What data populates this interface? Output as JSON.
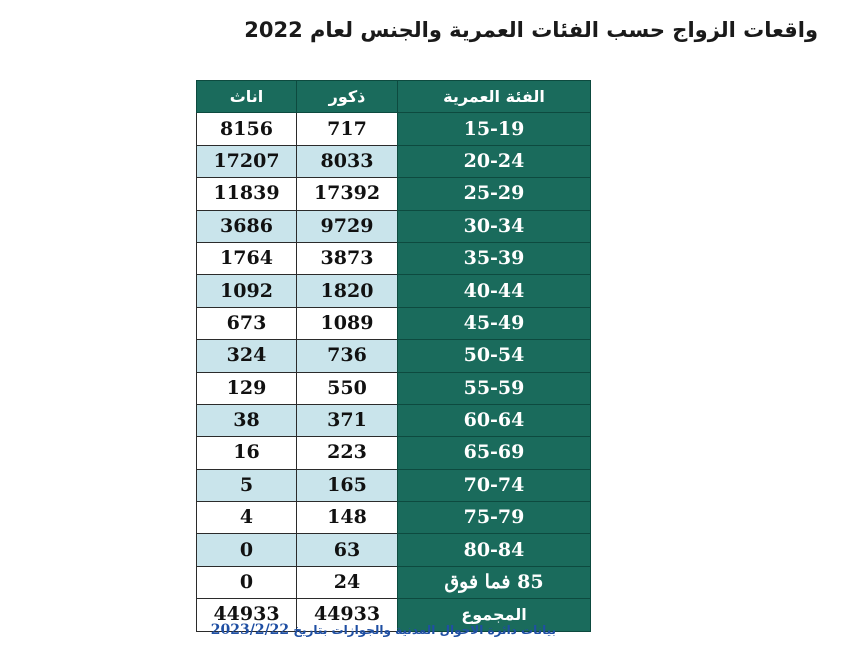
{
  "title": "واقعات الزواج حسب الفئات العمرية والجنس لعام 2022",
  "table": {
    "headers": {
      "age_group": "الفئة العمرية",
      "male": "ذكور",
      "female": "اناث"
    },
    "rows": [
      {
        "age": "15-19",
        "male": "717",
        "female": "8156"
      },
      {
        "age": "20-24",
        "male": "8033",
        "female": "17207"
      },
      {
        "age": "25-29",
        "male": "17392",
        "female": "11839"
      },
      {
        "age": "30-34",
        "male": "9729",
        "female": "3686"
      },
      {
        "age": "35-39",
        "male": "3873",
        "female": "1764"
      },
      {
        "age": "40-44",
        "male": "1820",
        "female": "1092"
      },
      {
        "age": "45-49",
        "male": "1089",
        "female": "673"
      },
      {
        "age": "50-54",
        "male": "736",
        "female": "324"
      },
      {
        "age": "55-59",
        "male": "550",
        "female": "129"
      },
      {
        "age": "60-64",
        "male": "371",
        "female": "38"
      },
      {
        "age": "65-69",
        "male": "223",
        "female": "16"
      },
      {
        "age": "70-74",
        "male": "165",
        "female": "5"
      },
      {
        "age": "75-79",
        "male": "148",
        "female": "4"
      },
      {
        "age": "80-84",
        "male": "63",
        "female": "0"
      },
      {
        "age": "85 فما فوق",
        "male": "24",
        "female": "0"
      }
    ],
    "total": {
      "label": "المجموع",
      "male": "44933",
      "female": "44933"
    }
  },
  "source": {
    "text": "بيانات دائرة الاحوال المدنية والجوازات بتاريخ",
    "date": "2023/2/22"
  },
  "colors": {
    "header_bg": "#1a6b5c",
    "stripe_bg": "#c9e4eb",
    "source_text": "#1f4fa3"
  }
}
